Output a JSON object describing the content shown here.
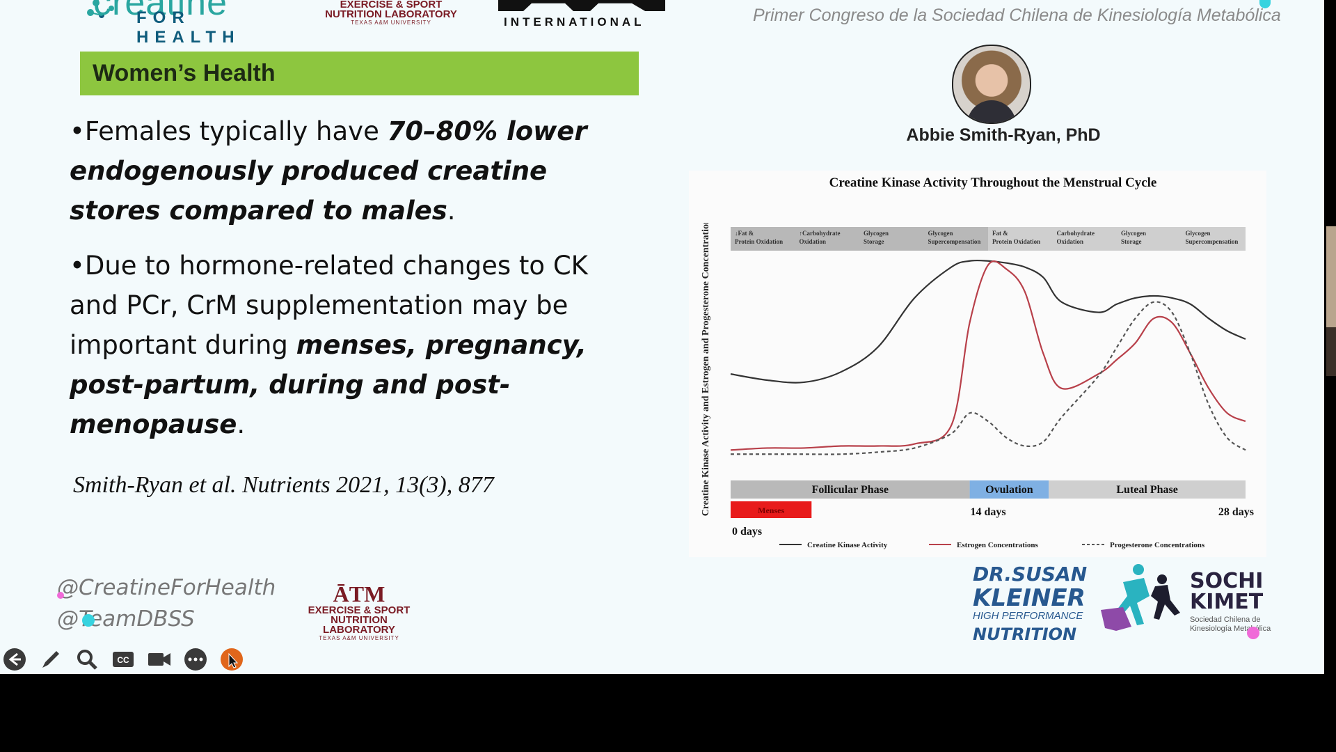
{
  "top_logos": {
    "creatine_for_health": {
      "title": "creatine",
      "subtitle": "FOR HEALTH"
    },
    "lab_top": {
      "line1": "EXERCISE & SPORT",
      "line2": "NUTRITION LABORATORY",
      "line3": "TEXAS A&M UNIVERSITY"
    },
    "dbss": {
      "subtitle": "INTERNATIONAL"
    },
    "congress_text": "Primer Congreso de la Sociedad Chilena de Kinesiología Metabólica"
  },
  "slide": {
    "header": "Women’s Health",
    "bullet1": {
      "prefix": "•Females typically have ",
      "emphasis": "70–80% lower endogenously produced creatine stores compared to males",
      "suffix": "."
    },
    "bullet2": {
      "prefix": "•Due to hormone-related changes to CK and PCr, CrM supplementation may be important during ",
      "emphasis": "menses, pregnancy, post-partum, during and post-menopause",
      "suffix": "."
    },
    "citation": "Smith-Ryan et al. Nutrients 2021, 13(3), 877",
    "social": {
      "handle1": "@CreatineForHealth",
      "handle2": "@TeamDBSS"
    },
    "lab_bottom": {
      "atm": "ĀTM",
      "line1": "EXERCISE & SPORT",
      "line2": "NUTRITION LABORATORY",
      "line3": "TEXAS A&M UNIVERSITY"
    }
  },
  "speaker": {
    "name": "Abbie Smith-Ryan, PhD"
  },
  "chart_data": {
    "type": "line",
    "title": "Creatine Kinase Activity Throughout the Menstrual Cycle",
    "ylabel": "Creatine Kinase Activity and Estrogen and Progesterone Concentrations",
    "xlabel": "",
    "x_ticks": [
      "0 days",
      "14 days",
      "28 days"
    ],
    "top_bands": [
      "↓Fat & Protein Oxidation",
      "↑Carbohydrate Oxidation",
      "Glycogen Storage",
      "Glycogen Supercompensation",
      "Fat & Protein Oxidation",
      "Carbohydrate Oxidation",
      "Glycogen Storage",
      "Glycogen Supercompensation"
    ],
    "phases": [
      {
        "name": "Follicular Phase",
        "color": "#b9b9b9"
      },
      {
        "name": "Ovulation",
        "color": "#7fb0e3"
      },
      {
        "name": "Luteal Phase",
        "color": "#cfcfcf"
      }
    ],
    "menses_label": "Menses",
    "menses_color": "#e81b1b",
    "x": [
      0,
      2,
      4,
      6,
      8,
      10,
      12,
      13,
      14,
      15,
      16,
      17,
      18,
      20,
      21,
      22,
      23,
      24,
      25,
      26,
      27,
      28
    ],
    "series": [
      {
        "name": "Creatine Kinase Activity",
        "color": "#333333",
        "dash": "",
        "values": [
          45,
          42,
          41,
          46,
          58,
          82,
          97,
          100,
          100,
          99,
          97,
          92,
          80,
          75,
          79,
          82,
          83,
          82,
          79,
          72,
          66,
          62
        ]
      },
      {
        "name": "Estrogen Concentrations",
        "color": "#b8404a",
        "dash": "",
        "values": [
          8,
          9,
          9,
          10,
          10,
          11,
          20,
          70,
          98,
          96,
          85,
          55,
          38,
          45,
          52,
          60,
          72,
          70,
          55,
          38,
          26,
          22
        ]
      },
      {
        "name": "Progesterone Concentrations",
        "color": "#555555",
        "dash": "5,4",
        "values": [
          6,
          6,
          6,
          6,
          7,
          9,
          16,
          26,
          22,
          14,
          10,
          12,
          24,
          44,
          58,
          72,
          80,
          75,
          55,
          30,
          14,
          8
        ]
      }
    ],
    "ylim": [
      0,
      105
    ],
    "grid": false,
    "legend": "bottom"
  },
  "bottom_logos": {
    "kleiner": {
      "line1": "DR.SUSAN",
      "line2": "KLEINER",
      "line3": "HIGH PERFORMANCE",
      "line4": "NUTRITION"
    },
    "sochi": {
      "line1": "SOCHI",
      "line2": "KIMET",
      "sub": "Sociedad Chilena de Kinesiología Metabólica"
    }
  },
  "toolbar": {
    "icons": [
      "back-arrow-icon",
      "pen-icon",
      "magnifier-icon",
      "closed-captions-icon",
      "video-camera-icon",
      "more-options-icon",
      "pointer-icon"
    ],
    "accent_color": "#e0661b"
  }
}
